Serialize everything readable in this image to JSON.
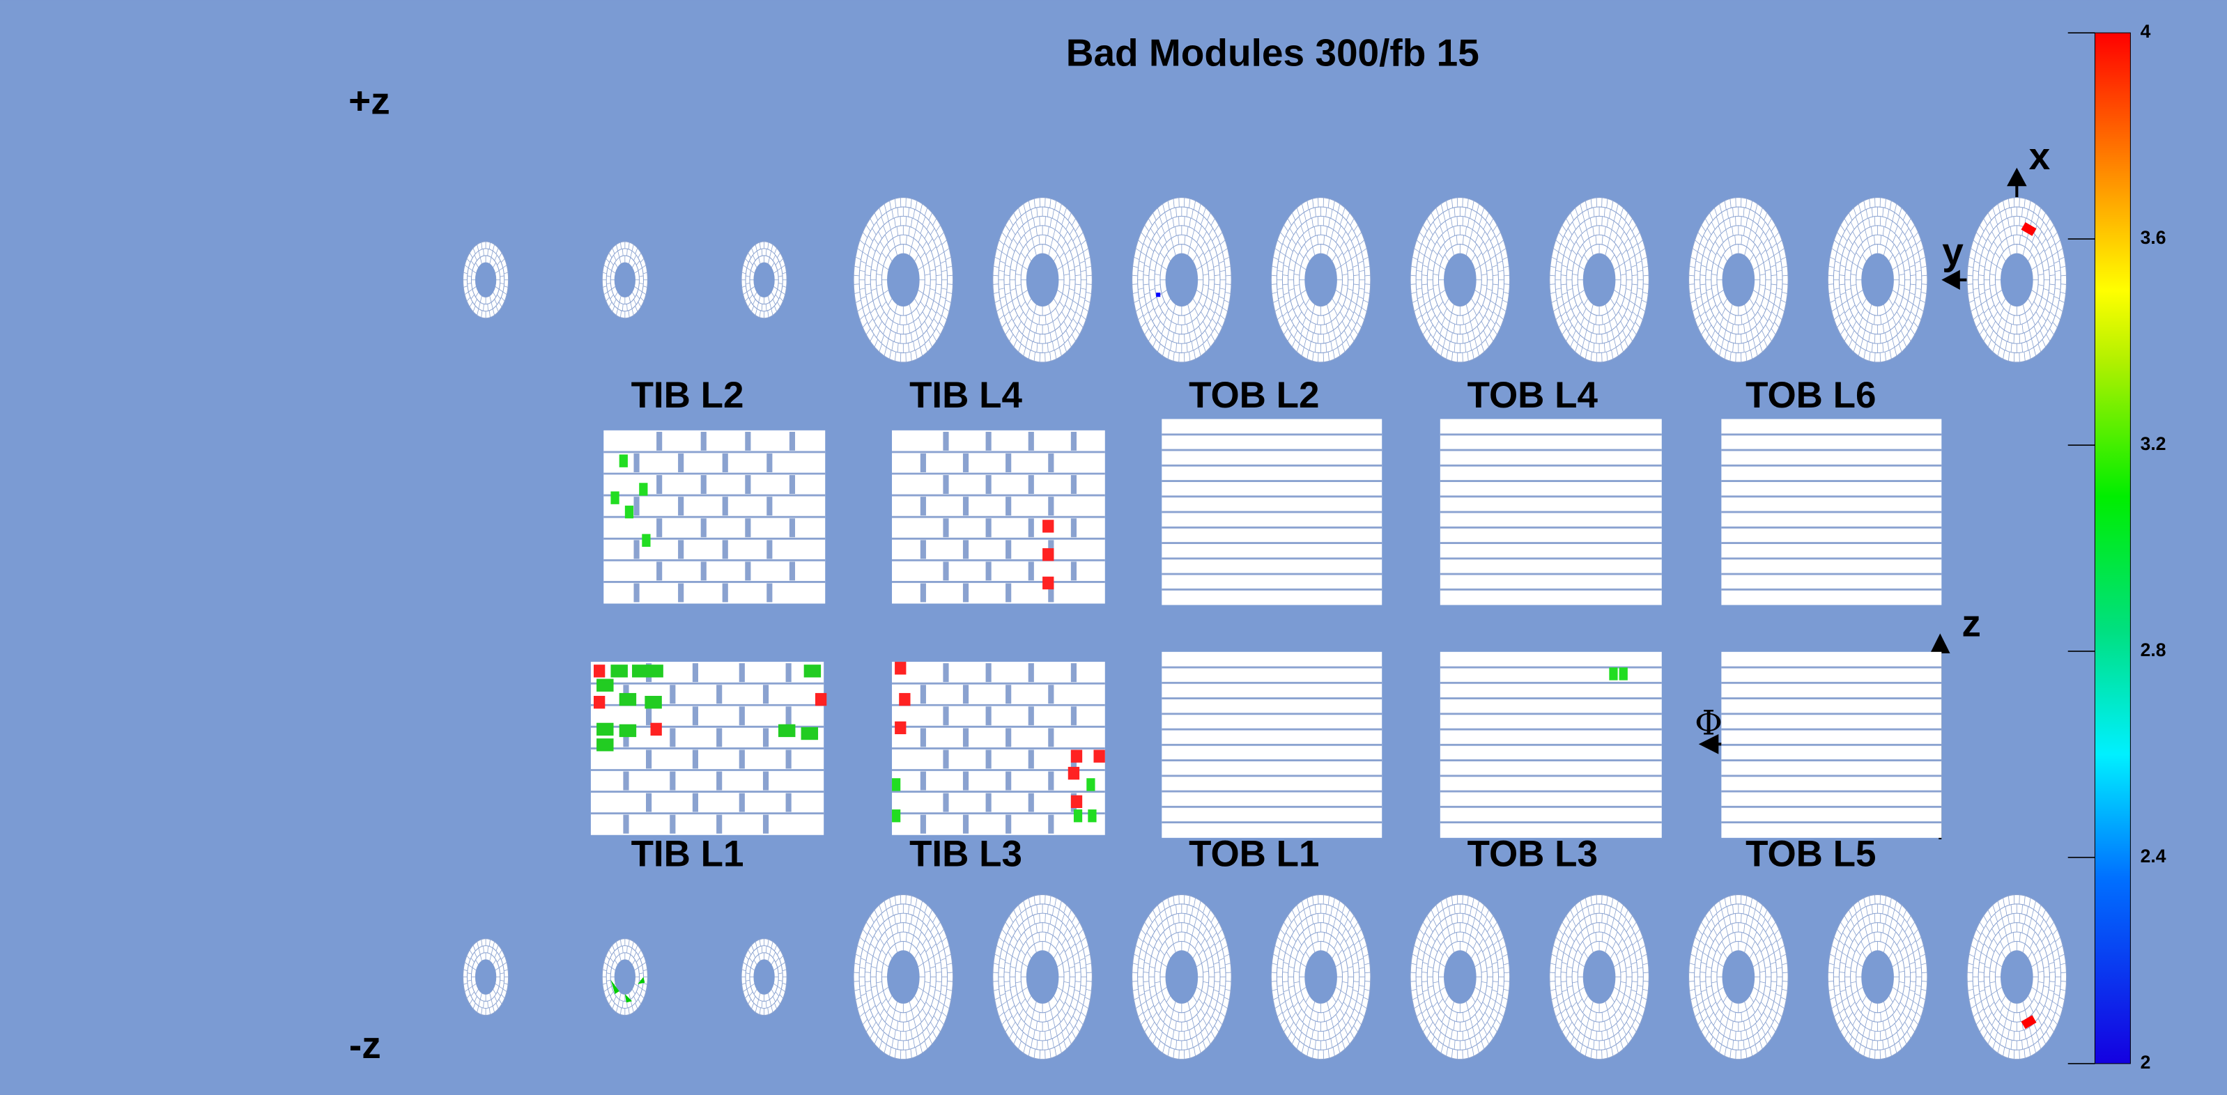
{
  "title": "Bad Modules 300/fb 15",
  "z_labels": {
    "plus": "+z",
    "minus": "-z"
  },
  "layers": {
    "top": [
      "TIB L2",
      "TIB L4",
      "TOB L2",
      "TOB L4",
      "TOB L6"
    ],
    "bottom": [
      "TIB L1",
      "TIB L3",
      "TOB L1",
      "TOB L3",
      "TOB L5"
    ]
  },
  "axes": {
    "x": "x",
    "y": "y",
    "z": "z",
    "phi": "Φ"
  },
  "colorbar": {
    "lim": [
      2,
      4
    ],
    "ticks": [
      2,
      2.4,
      2.8,
      3.2,
      3.6,
      4
    ]
  }
}
